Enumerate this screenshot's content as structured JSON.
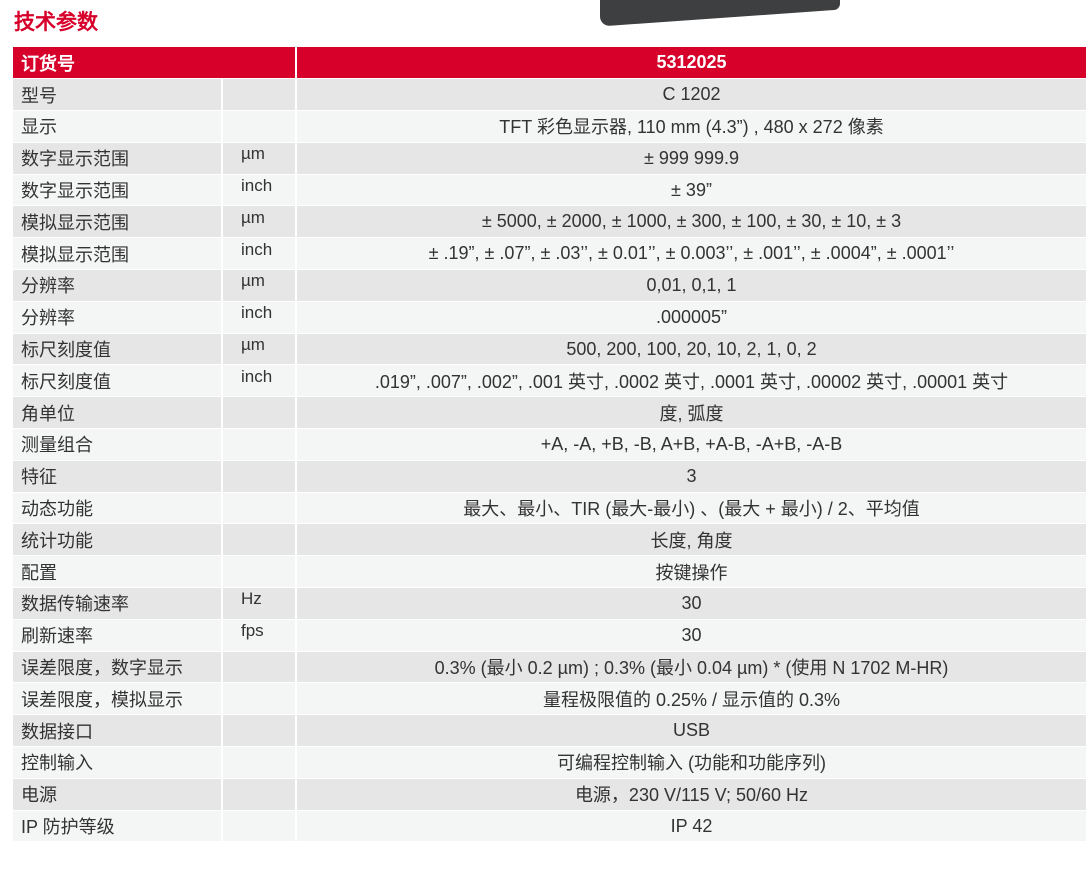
{
  "title": "技术参数",
  "header": {
    "label": "订货号",
    "value": "5312025"
  },
  "rows": [
    {
      "label": "型号",
      "unit": "",
      "value": "C 1202"
    },
    {
      "label": "显示",
      "unit": "",
      "value": "TFT 彩色显示器, 110 mm (4.3”) , 480 x 272 像素"
    },
    {
      "label": "数字显示范围",
      "unit": "µm",
      "value": "± 999 999.9"
    },
    {
      "label": "数字显示范围",
      "unit": "inch",
      "value": "± 39”"
    },
    {
      "label": "模拟显示范围",
      "unit": "µm",
      "value": "± 5000, ± 2000, ± 1000, ± 300, ± 100, ± 30, ± 10, ± 3"
    },
    {
      "label": "模拟显示范围",
      "unit": "inch",
      "value": "± .19”,   ± .07”, ± .03’’, ± 0.01’’, ± 0.003’’, ± .001’’, ± .0004”, ± .0001’’"
    },
    {
      "label": "分辨率",
      "unit": "µm",
      "value": "0,01, 0,1, 1"
    },
    {
      "label": "分辨率",
      "unit": "inch",
      "value": ".000005”"
    },
    {
      "label": "标尺刻度值",
      "unit": "µm",
      "value": "500, 200, 100, 20, 10, 2, 1, 0, 2"
    },
    {
      "label": "标尺刻度值",
      "unit": "inch",
      "value": ".019”, .007”, .002”, .001 英寸, .0002 英寸, .0001 英寸, .00002 英寸, .00001 英寸"
    },
    {
      "label": "角单位",
      "unit": "",
      "value": "度, 弧度"
    },
    {
      "label": "测量组合",
      "unit": "",
      "value": "+A, -A, +B, -B, A+B, +A-B, -A+B, -A-B"
    },
    {
      "label": "特征",
      "unit": "",
      "value": "3"
    },
    {
      "label": "动态功能",
      "unit": "",
      "value": "最大、最小、TIR (最大-最小) 、(最大 + 最小) / 2、平均值"
    },
    {
      "label": "统计功能",
      "unit": "",
      "value": "长度, 角度"
    },
    {
      "label": "配置",
      "unit": "",
      "value": "按键操作"
    },
    {
      "label": "数据传输速率",
      "unit": "Hz",
      "value": "30"
    },
    {
      "label": "刷新速率",
      "unit": "fps",
      "value": "30"
    },
    {
      "label": "误差限度，数字显示",
      "unit": "",
      "value": "0.3% (最小 0.2 µm) ; 0.3% (最小 0.04 µm) * (使用 N 1702 M-HR)"
    },
    {
      "label": "误差限度，模拟显示",
      "unit": "",
      "value": "量程极限值的 0.25% / 显示值的 0.3%"
    },
    {
      "label": "数据接口",
      "unit": "",
      "value": "USB"
    },
    {
      "label": "控制输入",
      "unit": "",
      "value": "可编程控制输入 (功能和功能序列)"
    },
    {
      "label": "电源",
      "unit": "",
      "value": "电源，230 V/115 V; 50/60 Hz"
    },
    {
      "label": "IP 防护等级",
      "unit": "",
      "value": "IP 42"
    }
  ],
  "colors": {
    "accent": "#d6002a",
    "row_dark": "#e6e6e6",
    "row_light": "#f4f5f5"
  }
}
